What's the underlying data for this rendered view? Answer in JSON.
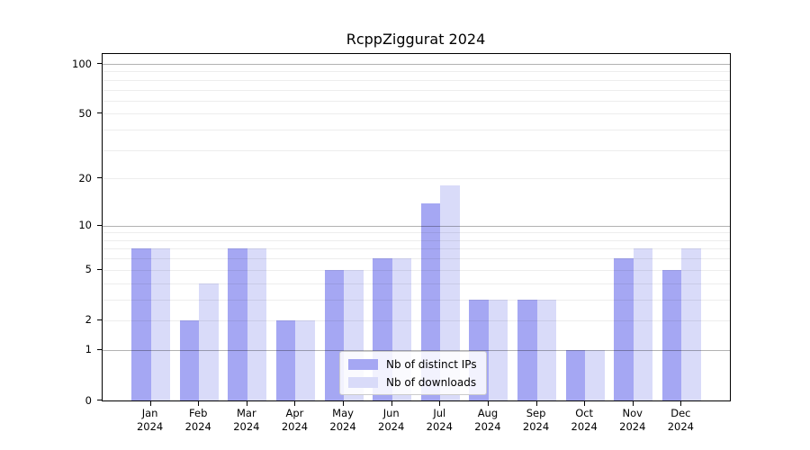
{
  "title": "RcppZiggurat 2024",
  "chart_data": {
    "type": "bar",
    "title": "RcppZiggurat 2024",
    "categories": [
      "Jan",
      "Feb",
      "Mar",
      "Apr",
      "May",
      "Jun",
      "Jul",
      "Aug",
      "Sep",
      "Oct",
      "Nov",
      "Dec"
    ],
    "year": "2024",
    "series": [
      {
        "name": "Nb of distinct IPs",
        "color": "#a5a7f3",
        "values": [
          7,
          2,
          7,
          2,
          5,
          6,
          14,
          3,
          3,
          1,
          6,
          5
        ]
      },
      {
        "name": "Nb of downloads",
        "color": "#d9dbf9",
        "values": [
          7,
          4,
          7,
          2,
          5,
          6,
          18,
          3,
          3,
          1,
          7,
          7
        ]
      }
    ],
    "ylabel": "",
    "xlabel": "",
    "yscale": "log1p",
    "ylim": [
      0,
      117
    ],
    "yticks": [
      0,
      1,
      2,
      5,
      10,
      20,
      50,
      100
    ],
    "major_gridlines": [
      1,
      10,
      100
    ],
    "minor_gridlines": [
      2,
      3,
      4,
      5,
      6,
      7,
      8,
      9,
      20,
      30,
      40,
      50,
      60,
      70,
      80,
      90
    ],
    "grid": true,
    "legend_position": "lower center"
  },
  "legend": {
    "items": [
      {
        "label": "Nb of distinct IPs",
        "color": "#a5a7f3"
      },
      {
        "label": "Nb of downloads",
        "color": "#d9dbf9"
      }
    ]
  },
  "colors": {
    "bar_distinct_ips": "#a5a7f3",
    "bar_downloads": "#d9dbf9",
    "major_grid": "#b3b3b3",
    "minor_grid": "#ededed",
    "axis": "#000000",
    "background": "#ffffff"
  }
}
